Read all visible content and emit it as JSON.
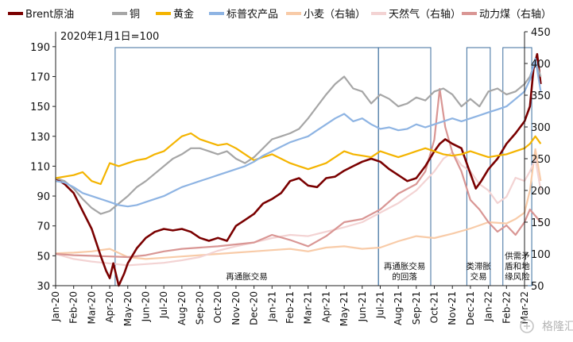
{
  "chart_data": {
    "type": "line",
    "note": "2020年1月1日=100",
    "y_left": {
      "ticks": [
        30,
        50,
        70,
        90,
        110,
        130,
        150,
        170,
        190
      ],
      "range": [
        30,
        200
      ]
    },
    "y_right": {
      "ticks": [
        50,
        100,
        150,
        200,
        250,
        300,
        350,
        400,
        450
      ],
      "range": [
        50,
        450
      ]
    },
    "x_ticks": [
      "Jan-20",
      "Feb-20",
      "Mar-20",
      "Apr-20",
      "May-20",
      "Jun-20",
      "Jul-20",
      "Aug-20",
      "Sep-20",
      "Oct-20",
      "Nov-20",
      "Dec-20",
      "Jan-21",
      "Feb-21",
      "Mar-21",
      "Apr-21",
      "May-21",
      "Jun-21",
      "Jul-21",
      "Aug-21",
      "Sep-21",
      "Oct-21",
      "Nov-21",
      "Dec-21",
      "Jan-22",
      "Feb-22",
      "Mar-22"
    ],
    "legend": [
      {
        "name": "Brent原油",
        "color": "#7a0000"
      },
      {
        "name": "铜",
        "color": "#a6a6a6"
      },
      {
        "name": "黄金",
        "color": "#f4b400"
      },
      {
        "name": "标普农产品",
        "color": "#8eb4e3"
      },
      {
        "name": "小麦（右轴）",
        "color": "#f8cba8"
      },
      {
        "name": "天然气（右轴）",
        "color": "#f3d3d3"
      },
      {
        "name": "动力煤（右轴）",
        "color": "#d99694"
      }
    ],
    "bands": [
      {
        "label": [
          "再通胀交易"
        ],
        "start": 3.3,
        "end": 17.9
      },
      {
        "label": [
          "再通胀交易",
          "的回落"
        ],
        "start": 17.9,
        "end": 20.8
      },
      {
        "label": [
          "类滞胀",
          "交易"
        ],
        "start": 22.8,
        "end": 24.1
      },
      {
        "label": [
          "供需矛",
          "盾和地",
          "缘风险"
        ],
        "start": 24.8,
        "end": 26.4
      }
    ],
    "series": [
      {
        "name": "Brent原油",
        "axis": "left",
        "color": "#7a0000",
        "x": [
          0,
          0.5,
          1,
          1.5,
          2,
          2.5,
          2.8,
          3,
          3.2,
          3.5,
          3.8,
          4,
          4.5,
          5,
          5.5,
          6,
          6.5,
          7,
          7.5,
          8,
          8.5,
          9,
          9.5,
          10,
          10.5,
          11,
          11.5,
          12,
          12.5,
          13,
          13.5,
          14,
          14.5,
          15,
          15.5,
          16,
          16.5,
          17,
          17.5,
          18,
          18.5,
          19,
          19.5,
          20,
          20.5,
          21,
          21.3,
          21.6,
          22,
          22.5,
          23,
          23.3,
          23.6,
          24,
          24.5,
          25,
          25.5,
          26,
          26.3,
          26.5,
          26.7,
          26.9
        ],
        "y": [
          102,
          98,
          92,
          80,
          68,
          50,
          40,
          35,
          45,
          30,
          38,
          45,
          55,
          62,
          66,
          68,
          67,
          68,
          66,
          62,
          60,
          62,
          60,
          70,
          74,
          78,
          85,
          88,
          92,
          100,
          102,
          97,
          96,
          102,
          103,
          107,
          110,
          113,
          115,
          113,
          108,
          104,
          100,
          102,
          110,
          120,
          125,
          128,
          125,
          122,
          105,
          95,
          100,
          108,
          115,
          125,
          132,
          140,
          150,
          175,
          185,
          165
        ]
      },
      {
        "name": "铜",
        "axis": "left",
        "color": "#a6a6a6",
        "x": [
          0,
          0.5,
          1,
          1.5,
          2,
          2.5,
          3,
          3.5,
          4,
          4.5,
          5,
          5.5,
          6,
          6.5,
          7,
          7.5,
          8,
          8.5,
          9,
          9.5,
          10,
          10.5,
          11,
          11.5,
          12,
          12.5,
          13,
          13.5,
          14,
          14.5,
          15,
          15.5,
          16,
          16.5,
          17,
          17.5,
          18,
          18.5,
          19,
          19.5,
          20,
          20.5,
          21,
          21.5,
          22,
          22.5,
          23,
          23.5,
          24,
          24.5,
          25,
          25.5,
          26,
          26.3,
          26.6,
          26.9
        ],
        "y": [
          102,
          100,
          95,
          88,
          82,
          78,
          80,
          85,
          90,
          96,
          100,
          105,
          110,
          115,
          118,
          122,
          122,
          120,
          118,
          120,
          115,
          112,
          116,
          122,
          128,
          130,
          132,
          135,
          142,
          150,
          158,
          165,
          170,
          162,
          160,
          152,
          158,
          155,
          150,
          152,
          156,
          154,
          160,
          162,
          158,
          150,
          155,
          150,
          160,
          162,
          158,
          160,
          165,
          170,
          180,
          170
        ]
      },
      {
        "name": "黄金",
        "axis": "left",
        "color": "#f4b400",
        "x": [
          0,
          0.5,
          1,
          1.5,
          2,
          2.5,
          3,
          3.5,
          4,
          4.5,
          5,
          5.5,
          6,
          6.5,
          7,
          7.5,
          8,
          8.5,
          9,
          9.5,
          10,
          10.5,
          11,
          11.5,
          12,
          12.5,
          13,
          13.5,
          14,
          14.5,
          15,
          15.5,
          16,
          16.5,
          17,
          17.5,
          18,
          18.5,
          19,
          19.5,
          20,
          20.5,
          21,
          21.5,
          22,
          22.5,
          23,
          23.5,
          24,
          24.5,
          25,
          25.5,
          26,
          26.3,
          26.6,
          26.9
        ],
        "y": [
          102,
          103,
          104,
          106,
          100,
          98,
          112,
          110,
          112,
          114,
          115,
          118,
          120,
          125,
          130,
          132,
          128,
          126,
          124,
          125,
          122,
          118,
          114,
          116,
          118,
          115,
          112,
          110,
          108,
          110,
          112,
          116,
          120,
          118,
          117,
          116,
          120,
          118,
          116,
          118,
          120,
          122,
          120,
          118,
          117,
          118,
          120,
          118,
          116,
          117,
          118,
          120,
          122,
          125,
          130,
          125
        ]
      },
      {
        "name": "标普农产品",
        "axis": "left",
        "color": "#8eb4e3",
        "x": [
          0,
          0.5,
          1,
          1.5,
          2,
          2.5,
          3,
          3.5,
          4,
          4.5,
          5,
          5.5,
          6,
          6.5,
          7,
          7.5,
          8,
          8.5,
          9,
          9.5,
          10,
          10.5,
          11,
          11.5,
          12,
          12.5,
          13,
          13.5,
          14,
          14.5,
          15,
          15.5,
          16,
          16.5,
          17,
          17.5,
          18,
          18.5,
          19,
          19.5,
          20,
          20.5,
          21,
          21.5,
          22,
          22.5,
          23,
          23.5,
          24,
          24.5,
          25,
          25.5,
          26,
          26.3,
          26.6,
          26.9
        ],
        "y": [
          100,
          99,
          96,
          92,
          90,
          88,
          86,
          84,
          83,
          84,
          86,
          88,
          90,
          93,
          96,
          98,
          100,
          102,
          104,
          106,
          108,
          110,
          113,
          117,
          120,
          123,
          126,
          128,
          130,
          134,
          138,
          142,
          145,
          140,
          142,
          138,
          135,
          136,
          134,
          135,
          138,
          136,
          138,
          140,
          142,
          140,
          142,
          144,
          146,
          148,
          150,
          155,
          160,
          168,
          182,
          160
        ]
      },
      {
        "name": "小麦（右轴）",
        "axis": "right",
        "color": "#f8cba8",
        "x": [
          0,
          1,
          2,
          3,
          4,
          5,
          6,
          7,
          8,
          9,
          10,
          11,
          12,
          13,
          14,
          15,
          16,
          17,
          18,
          19,
          20,
          21,
          22,
          23,
          24,
          25,
          25.5,
          26,
          26.3,
          26.6,
          26.9
        ],
        "y": [
          101,
          102,
          104,
          108,
          95,
          92,
          94,
          96,
          98,
          100,
          102,
          104,
          106,
          108,
          104,
          110,
          112,
          108,
          110,
          120,
          128,
          125,
          132,
          140,
          150,
          148,
          155,
          165,
          200,
          265,
          215
        ]
      },
      {
        "name": "天然气（右轴）",
        "axis": "right",
        "color": "#f3d3d3",
        "x": [
          0,
          1,
          2,
          3,
          4,
          5,
          6,
          7,
          8,
          9,
          10,
          11,
          12,
          13,
          14,
          15,
          16,
          17,
          18,
          19,
          20,
          20.5,
          21,
          21.5,
          22,
          22.5,
          23,
          23.5,
          24,
          24.5,
          25,
          25.5,
          26,
          26.3,
          26.6,
          26.9
        ],
        "y": [
          100,
          92,
          88,
          85,
          82,
          84,
          86,
          90,
          95,
          105,
          112,
          118,
          125,
          130,
          128,
          135,
          142,
          150,
          165,
          180,
          200,
          215,
          230,
          250,
          260,
          240,
          230,
          210,
          200,
          180,
          190,
          220,
          215,
          230,
          250,
          200
        ]
      },
      {
        "name": "动力煤（右轴）",
        "axis": "right",
        "color": "#d99694",
        "x": [
          0,
          1,
          2,
          3,
          4,
          5,
          6,
          7,
          8,
          9,
          10,
          11,
          12,
          13,
          14,
          15,
          16,
          17,
          18,
          19,
          20,
          20.5,
          21,
          21.3,
          21.6,
          22,
          22.5,
          23,
          23.5,
          24,
          24.5,
          25,
          25.5,
          26,
          26.3,
          26.6,
          26.9
        ],
        "y": [
          100,
          98,
          97,
          96,
          95,
          98,
          104,
          108,
          110,
          112,
          115,
          118,
          130,
          122,
          112,
          128,
          150,
          155,
          170,
          195,
          210,
          230,
          280,
          360,
          300,
          260,
          230,
          185,
          170,
          150,
          135,
          145,
          130,
          150,
          170,
          160,
          150
        ]
      }
    ]
  },
  "watermark": "格隆汇"
}
